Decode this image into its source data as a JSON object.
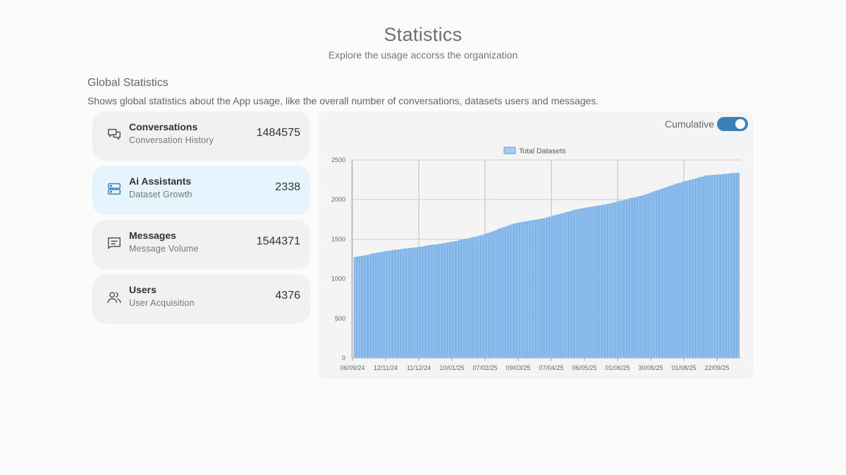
{
  "header": {
    "title": "Statistics",
    "subtitle": "Explore the usage accorss the organization"
  },
  "section": {
    "title": "Global Statistics",
    "description": "Shows global statistics about the App usage, like the overall number of conversations, datasets users and messages."
  },
  "cards": [
    {
      "title": "Conversations",
      "subtitle": "Conversation History",
      "value": "1484575",
      "icon": "chat-bubbles-icon"
    },
    {
      "title": "Ai Assistants",
      "subtitle": "Dataset Growth",
      "value": "2338",
      "icon": "database-icon",
      "active": true
    },
    {
      "title": "Messages",
      "subtitle": "Message Volume",
      "value": "1544371",
      "icon": "message-icon"
    },
    {
      "title": "Users",
      "subtitle": "User Acquisition",
      "value": "4376",
      "icon": "users-icon"
    }
  ],
  "toggle": {
    "label": "Cumulative",
    "on": true
  },
  "colors": {
    "bar_fill": "#8fbdec",
    "bar_stroke": "#5a9be0",
    "toggle": "#3d80b8",
    "active_card": "#e6f5fd"
  },
  "chart_data": {
    "type": "bar",
    "legend": "Total Datasets",
    "legend_position": "top",
    "grid": true,
    "ylim": [
      0,
      2500
    ],
    "yticks": [
      0,
      500,
      1000,
      1500,
      2000,
      2500
    ],
    "xticks": [
      "06/09/24",
      "12/11/24",
      "11/12/24",
      "10/01/25",
      "07/02/25",
      "09/03/25",
      "07/04/25",
      "06/05/25",
      "01/06/25",
      "30/06/25",
      "01/08/25",
      "22/09/25"
    ],
    "start_value": 1270,
    "end_value": 2338,
    "approx_checkpoints": [
      {
        "date": "06/09/24",
        "value": 1270
      },
      {
        "date": "12/11/24",
        "value": 1350
      },
      {
        "date": "11/12/24",
        "value": 1400
      },
      {
        "date": "10/01/25",
        "value": 1460
      },
      {
        "date": "07/02/25",
        "value": 1550
      },
      {
        "date": "09/03/25",
        "value": 1700
      },
      {
        "date": "07/04/25",
        "value": 1770
      },
      {
        "date": "06/05/25",
        "value": 1880
      },
      {
        "date": "01/06/25",
        "value": 1950
      },
      {
        "date": "30/06/25",
        "value": 2050
      },
      {
        "date": "01/08/25",
        "value": 2190
      },
      {
        "date": "22/09/25",
        "value": 2300
      },
      {
        "date": "end",
        "value": 2338
      }
    ]
  }
}
